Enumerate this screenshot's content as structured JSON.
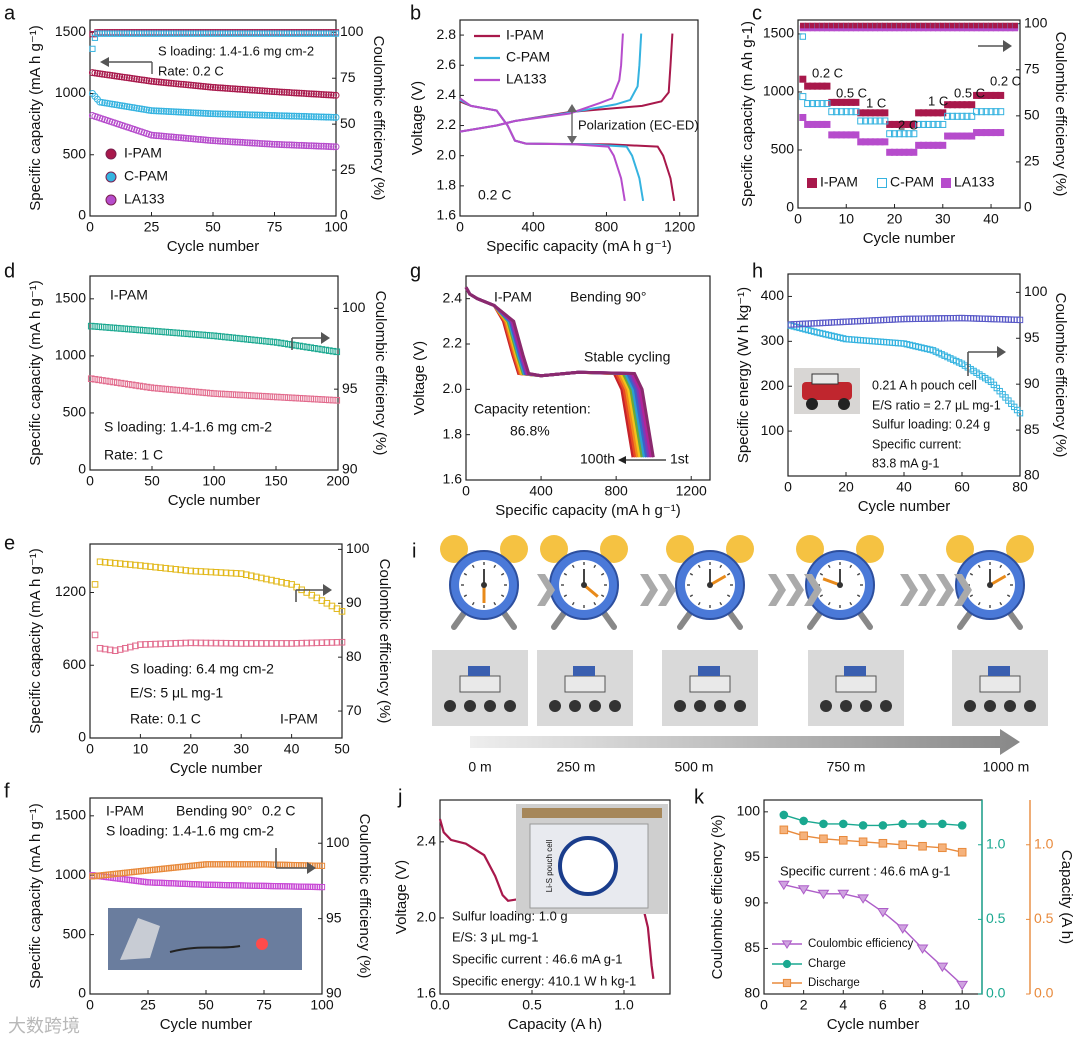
{
  "labels": {
    "a": "a",
    "b": "b",
    "c": "c",
    "d": "d",
    "e": "e",
    "f": "f",
    "g": "g",
    "h": "h",
    "i": "i",
    "j": "j",
    "k": "k"
  },
  "watermark": "大数跨境",
  "colors": {
    "ipam": "#a8184b",
    "cpam": "#35b3e0",
    "la133": "#b64ccc",
    "teal": "#1aa890",
    "orange": "#e88a3c",
    "yellow": "#e2b81a",
    "pink": "#e26b8d",
    "lilac": "#ad5dc8"
  },
  "chart_data": [
    {
      "panel": "a",
      "type": "scatter",
      "xlabel": "Cycle number",
      "ylabel": "Specific capacity (mA h g-1)",
      "y2label": "Coulombic efficiency (%)",
      "xlim": [
        0,
        100
      ],
      "ylim": [
        0,
        1600
      ],
      "y2lim": [
        0,
        106.7
      ],
      "xticks": [
        "0",
        "25",
        "50",
        "75",
        "100"
      ],
      "yticks": [
        "0",
        "500",
        "1000",
        "1500"
      ],
      "y2ticks": [
        "0",
        "25",
        "50",
        "75",
        "100"
      ],
      "annotations": [
        "S loading: 1.4-1.6 mg cm-2",
        "Rate: 0.2 C"
      ],
      "series": [
        {
          "name": "I-PAM",
          "x": [
            1,
            25,
            50,
            75,
            100
          ],
          "y": [
            1170,
            1100,
            1050,
            1015,
            985
          ]
        },
        {
          "name": "C-PAM",
          "x": [
            1,
            25,
            50,
            75,
            100
          ],
          "y": [
            940,
            860,
            835,
            820,
            805
          ]
        },
        {
          "name": "LA133",
          "x": [
            1,
            25,
            50,
            75,
            100
          ],
          "y": [
            820,
            660,
            615,
            585,
            565
          ]
        },
        {
          "name": "I-PAM CE",
          "axis": "right",
          "x": [
            1,
            25,
            50,
            75,
            100
          ],
          "y": [
            100,
            100,
            100,
            100,
            100
          ]
        },
        {
          "name": "C-PAM CE",
          "axis": "right",
          "x": [
            1,
            25,
            50,
            75,
            100
          ],
          "y": [
            98,
            100,
            100,
            100,
            100
          ]
        }
      ]
    },
    {
      "panel": "b",
      "type": "line",
      "xlabel": "Specific capacity (mA h g-1)",
      "ylabel": "Voltage (V)",
      "xlim": [
        0,
        1300
      ],
      "ylim": [
        1.6,
        2.9
      ],
      "xticks": [
        "0",
        "400",
        "800",
        "1200"
      ],
      "yticks": [
        "1.6",
        "1.8",
        "2.0",
        "2.2",
        "2.4",
        "2.6",
        "2.8"
      ],
      "annotations": [
        "0.2 C",
        "Polarization (EC-ED)"
      ],
      "series": [
        {
          "name": "I-PAM",
          "discharge_end": 1170
        },
        {
          "name": "C-PAM",
          "discharge_end": 1000
        },
        {
          "name": "LA133",
          "discharge_end": 900
        }
      ]
    },
    {
      "panel": "c",
      "type": "scatter",
      "xlabel": "Cycle number",
      "ylabel": "Specific capacity (m Ah g-1)",
      "y2label": "Coulombic efficiency (%)",
      "xlim": [
        0,
        46
      ],
      "ylim": [
        0,
        1620
      ],
      "y2lim": [
        0,
        102
      ],
      "xticks": [
        "0",
        "10",
        "20",
        "30",
        "40"
      ],
      "yticks": [
        "0",
        "500",
        "1000",
        "1500"
      ],
      "y2ticks": [
        "0",
        "25",
        "50",
        "75",
        "100"
      ],
      "rates": [
        "0.2 C",
        "0.5 C",
        "1 C",
        "2 C",
        "1 C",
        "0.5 C",
        "0.2 C"
      ],
      "series": [
        {
          "name": "I-PAM",
          "values": [
            1050,
            910,
            820,
            720,
            820,
            890,
            970
          ]
        },
        {
          "name": "C-PAM",
          "values": [
            900,
            830,
            750,
            640,
            720,
            790,
            830
          ]
        },
        {
          "name": "LA133",
          "values": [
            720,
            630,
            570,
            480,
            540,
            620,
            650
          ]
        }
      ]
    },
    {
      "panel": "d",
      "type": "scatter",
      "xlabel": "Cycle number",
      "ylabel": "Specific capacity (mA h g-1)",
      "y2label": "Coulombic efficiency (%)",
      "xlim": [
        0,
        200
      ],
      "ylim": [
        0,
        1700
      ],
      "y2lim": [
        90,
        102
      ],
      "xticks": [
        "0",
        "50",
        "100",
        "150",
        "200"
      ],
      "yticks": [
        "0",
        "500",
        "1000",
        "1500"
      ],
      "y2ticks": [
        "90",
        "95",
        "100"
      ],
      "annotations": [
        "I-PAM",
        "S loading: 1.4-1.6 mg cm-2",
        "Rate: 1 C"
      ],
      "series": [
        {
          "name": "capacity",
          "x": [
            1,
            50,
            100,
            150,
            200
          ],
          "y": [
            800,
            720,
            670,
            640,
            610
          ]
        },
        {
          "name": "CE",
          "axis": "right",
          "x": [
            1,
            50,
            100,
            150,
            200
          ],
          "y": [
            98.9,
            98.6,
            98.3,
            97.9,
            97.3
          ]
        }
      ]
    },
    {
      "panel": "e",
      "type": "scatter",
      "xlabel": "Cycle number",
      "ylabel": "Specific capacity (mA h g-1)",
      "y2label": "Coulombic efficiency (%)",
      "xlim": [
        0,
        50
      ],
      "ylim": [
        0,
        1600
      ],
      "y2lim": [
        65,
        101
      ],
      "xticks": [
        "0",
        "10",
        "20",
        "30",
        "40",
        "50"
      ],
      "yticks": [
        "0",
        "600",
        "1200"
      ],
      "y2ticks": [
        "70",
        "80",
        "90",
        "100"
      ],
      "annotations": [
        "S loading: 6.4 mg cm-2",
        "E/S: 5 μL mg-1",
        "Rate: 0.1 C",
        "I-PAM"
      ],
      "series": [
        {
          "name": "capacity",
          "x": [
            1,
            2,
            5,
            10,
            20,
            30,
            40,
            50
          ],
          "y": [
            850,
            740,
            720,
            770,
            785,
            780,
            780,
            790
          ]
        },
        {
          "name": "CE",
          "axis": "right",
          "x": [
            1,
            2,
            10,
            20,
            30,
            40,
            50
          ],
          "y": [
            93.5,
            97.7,
            97,
            96,
            95.5,
            93.5,
            88.5
          ]
        }
      ]
    },
    {
      "panel": "f",
      "type": "scatter",
      "xlabel": "Cycle number",
      "ylabel": "Specific capacity (mA h g-1)",
      "y2label": "Coulombic efficiency (%)",
      "xlim": [
        0,
        100
      ],
      "ylim": [
        0,
        1650
      ],
      "y2lim": [
        90,
        103
      ],
      "xticks": [
        "0",
        "25",
        "50",
        "75",
        "100"
      ],
      "yticks": [
        "0",
        "500",
        "1000",
        "1500"
      ],
      "y2ticks": [
        "90",
        "95",
        "100"
      ],
      "annotations": [
        "I-PAM",
        "Bending 90°",
        "0.2 C",
        "S loading: 1.4-1.6 mg cm-2"
      ],
      "series": [
        {
          "name": "capacity",
          "x": [
            1,
            25,
            50,
            75,
            100
          ],
          "y": [
            1000,
            940,
            920,
            910,
            900
          ]
        },
        {
          "name": "CE",
          "axis": "right",
          "x": [
            1,
            25,
            50,
            75,
            100
          ],
          "y": [
            97.8,
            98.2,
            98.6,
            98.6,
            98.5
          ]
        }
      ]
    },
    {
      "panel": "g",
      "type": "line",
      "xlabel": "Specific capacity (mA h g-1)",
      "ylabel": "Voltage (V)",
      "xlim": [
        0,
        1300
      ],
      "ylim": [
        1.6,
        2.5
      ],
      "xticks": [
        "0",
        "400",
        "800",
        "1200"
      ],
      "yticks": [
        "1.6",
        "1.8",
        "2.0",
        "2.2",
        "2.4"
      ],
      "annotations": [
        "I-PAM",
        "Bending 90°",
        "Stable cycling",
        "Capacity retention:",
        "86.8%",
        "100th",
        "1st"
      ]
    },
    {
      "panel": "h",
      "type": "scatter",
      "xlabel": "Cycle number",
      "ylabel": "Specific energy (W h kg-1)",
      "y2label": "Coulombic efficiency (%)",
      "xlim": [
        0,
        80
      ],
      "ylim": [
        0,
        450
      ],
      "y2lim": [
        80,
        102
      ],
      "xticks": [
        "0",
        "20",
        "40",
        "60",
        "80"
      ],
      "yticks": [
        "100",
        "200",
        "300",
        "400"
      ],
      "y2ticks": [
        "80",
        "85",
        "90",
        "95",
        "100"
      ],
      "annotations": [
        "0.21 A h pouch cell",
        "E/S ratio = 2.7 μL mg-1",
        "Sulfur loading: 0.24 g",
        "Specific current:",
        "83.8 mA g-1"
      ],
      "series": [
        {
          "name": "specific energy",
          "x": [
            1,
            10,
            20,
            30,
            40,
            50,
            60,
            70,
            80
          ],
          "y": [
            335,
            320,
            305,
            300,
            295,
            280,
            250,
            210,
            140
          ]
        },
        {
          "name": "CE",
          "axis": "right",
          "x": [
            1,
            20,
            40,
            60,
            80
          ],
          "y": [
            96.5,
            96.8,
            97.1,
            97.2,
            97
          ]
        }
      ]
    },
    {
      "panel": "j",
      "type": "line",
      "xlabel": "Capacity (A h)",
      "ylabel": "Voltage (V)",
      "xlim": [
        0,
        1.25
      ],
      "ylim": [
        1.6,
        2.62
      ],
      "xticks": [
        "0.0",
        "0.5",
        "1.0"
      ],
      "yticks": [
        "1.6",
        "2.0",
        "2.4"
      ],
      "annotations": [
        "Sulfur loading: 1.0 g",
        "E/S: 3 μL mg-1",
        "Specific current : 46.6 mA g-1",
        "Specific energy: 410.1 W h kg-1",
        "Li-S pouch cell"
      ]
    },
    {
      "panel": "k",
      "type": "line",
      "xlabel": "Cycle number",
      "ylabel": "Coulombic efficiency (%)",
      "y2label": "Capacity (A h)",
      "xlim": [
        0,
        11
      ],
      "ylim": [
        80,
        101.3
      ],
      "y2lim": [
        0,
        1.3
      ],
      "xticks": [
        "0",
        "2",
        "4",
        "6",
        "8",
        "10"
      ],
      "yticks": [
        "80",
        "85",
        "90",
        "95",
        "100"
      ],
      "y2ticks": [
        "0.0",
        "0.5",
        "1.0"
      ],
      "annotations": [
        "Specific current : 46.6 mA g-1"
      ],
      "categories": [
        1,
        2,
        3,
        4,
        5,
        6,
        7,
        8,
        9,
        10
      ],
      "series": [
        {
          "name": "Coulombic efficiency",
          "values": [
            92,
            91.5,
            91,
            91,
            90.5,
            89,
            87.2,
            85,
            83,
            81
          ]
        },
        {
          "name": "Charge",
          "axis": "right",
          "values": [
            1.2,
            1.16,
            1.14,
            1.14,
            1.13,
            1.13,
            1.14,
            1.14,
            1.14,
            1.13
          ]
        },
        {
          "name": "Discharge",
          "axis": "right",
          "values": [
            1.1,
            1.06,
            1.04,
            1.03,
            1.02,
            1.01,
            1.0,
            0.99,
            0.98,
            0.95
          ]
        }
      ]
    },
    {
      "panel": "i",
      "type": "table",
      "distances": [
        "0 m",
        "250 m",
        "500 m",
        "750 m",
        "1000 m"
      ]
    }
  ]
}
